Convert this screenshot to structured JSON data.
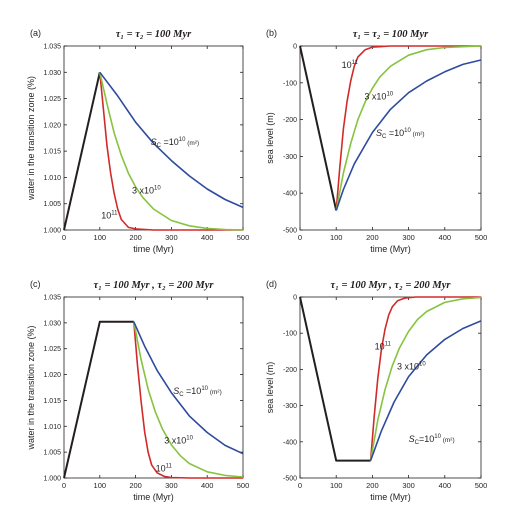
{
  "colors": {
    "black": "#231f20",
    "red": "#d22a2a",
    "green": "#86c440",
    "blue": "#2e4b9e"
  },
  "chart_data": [
    {
      "type": "line",
      "panel_label": "(a)",
      "title": "τ₁ = τ₂ = 100 Myr",
      "xlabel": "time (Myr)",
      "ylabel": "water in the transition zone (%)",
      "xlim": [
        0,
        500
      ],
      "ylim": [
        1.0,
        1.035
      ],
      "xticks": [
        "0",
        "100",
        "200",
        "300",
        "400",
        "500"
      ],
      "yticks": [
        "1.000",
        "1.005",
        "1.010",
        "1.015",
        "1.020",
        "1.025",
        "1.030",
        "1.035"
      ],
      "series": [
        {
          "color": "#231f20",
          "x": [
            0,
            100
          ],
          "y": [
            1.0,
            1.03
          ]
        },
        {
          "color": "#d22a2a",
          "x": [
            100,
            110,
            120,
            130,
            140,
            150,
            160,
            180,
            200,
            250,
            300,
            400,
            500
          ],
          "y": [
            1.03,
            1.023,
            1.016,
            1.011,
            1.007,
            1.004,
            1.002,
            1.0005,
            1.0002,
            1.0,
            1.0,
            1.0,
            1.0
          ]
        },
        {
          "color": "#86c440",
          "x": [
            100,
            120,
            140,
            160,
            180,
            200,
            220,
            250,
            300,
            350,
            400,
            450,
            500
          ],
          "y": [
            1.03,
            1.024,
            1.0185,
            1.0142,
            1.0108,
            1.0082,
            1.0062,
            1.004,
            1.0018,
            1.0008,
            1.0003,
            1.0001,
            1.0
          ]
        },
        {
          "color": "#2e4b9e",
          "x": [
            100,
            150,
            200,
            250,
            300,
            350,
            400,
            450,
            500
          ],
          "y": [
            1.03,
            1.0255,
            1.0205,
            1.0165,
            1.0132,
            1.0103,
            1.0078,
            1.0058,
            1.0043
          ]
        }
      ],
      "annotations": [
        {
          "text": "S",
          "sub": "C",
          "rest": " =10",
          "sup": "10",
          "unit": " (m²)",
          "x": 242,
          "y": 1.0162,
          "color": "#231f20"
        },
        {
          "text": "3 x10",
          "sup": "10",
          "x": 190,
          "y": 1.0069,
          "color": "#231f20"
        },
        {
          "text": "10",
          "sup": "11",
          "x": 104,
          "y": 1.0022,
          "color": "#231f20"
        }
      ]
    },
    {
      "type": "line",
      "panel_label": "(b)",
      "title": "τ₁ = τ₂ = 100 Myr",
      "xlabel": "time (Myr)",
      "ylabel": "sea level (m)",
      "xlim": [
        0,
        500
      ],
      "ylim": [
        -500,
        0
      ],
      "xticks": [
        "0",
        "100",
        "200",
        "300",
        "400",
        "500"
      ],
      "yticks": [
        "-500",
        "-400",
        "-300",
        "-200",
        "-100",
        "0"
      ],
      "series": [
        {
          "color": "#231f20",
          "x": [
            0,
            100
          ],
          "y": [
            0,
            -447
          ]
        },
        {
          "color": "#d22a2a",
          "x": [
            100,
            110,
            120,
            130,
            140,
            150,
            160,
            180,
            200,
            250,
            500
          ],
          "y": [
            -447,
            -330,
            -225,
            -150,
            -95,
            -55,
            -30,
            -10,
            -3,
            0,
            0
          ]
        },
        {
          "color": "#86c440",
          "x": [
            100,
            120,
            140,
            160,
            180,
            200,
            220,
            250,
            300,
            350,
            400,
            500
          ],
          "y": [
            -447,
            -345,
            -265,
            -200,
            -152,
            -115,
            -85,
            -55,
            -25,
            -10,
            -4,
            0
          ]
        },
        {
          "color": "#2e4b9e",
          "x": [
            100,
            120,
            150,
            200,
            250,
            300,
            350,
            400,
            450,
            500
          ],
          "y": [
            -447,
            -390,
            -320,
            -235,
            -172,
            -127,
            -95,
            -70,
            -50,
            -38
          ]
        }
      ],
      "annotations": [
        {
          "text": "10",
          "sup": "11",
          "x": 115,
          "y": -60,
          "color": "#231f20"
        },
        {
          "text": "3 x10",
          "sup": "10",
          "x": 178,
          "y": -145,
          "color": "#231f20"
        },
        {
          "text": "S",
          "sub": "C",
          "rest": " =10",
          "sup": "10",
          "unit": " (m²)",
          "x": 210,
          "y": -245,
          "color": "#231f20"
        }
      ]
    },
    {
      "type": "line",
      "panel_label": "(c)",
      "title": "τ₁ = 100 Myr , τ₂ = 200 Myr",
      "xlabel": "time (Myr)",
      "ylabel": "water in the transition zone (%)",
      "xlim": [
        0,
        500
      ],
      "ylim": [
        1.0,
        1.035
      ],
      "xticks": [
        "0",
        "100",
        "200",
        "300",
        "400",
        "500"
      ],
      "yticks": [
        "1.000",
        "1.005",
        "1.010",
        "1.015",
        "1.020",
        "1.025",
        "1.030",
        "1.035"
      ],
      "series": [
        {
          "color": "#231f20",
          "x": [
            0,
            100,
            195
          ],
          "y": [
            1.0,
            1.0302,
            1.0302
          ]
        },
        {
          "color": "#d22a2a",
          "x": [
            195,
            205,
            215,
            225,
            235,
            245,
            260,
            280,
            300,
            350,
            500
          ],
          "y": [
            1.0302,
            1.022,
            1.015,
            1.009,
            1.005,
            1.0025,
            1.001,
            1.0003,
            1.0001,
            1.0,
            1.0
          ]
        },
        {
          "color": "#86c440",
          "x": [
            195,
            215,
            235,
            255,
            275,
            300,
            325,
            350,
            400,
            450,
            500
          ],
          "y": [
            1.0302,
            1.023,
            1.0172,
            1.0128,
            1.0095,
            1.0064,
            1.0043,
            1.0028,
            1.0012,
            1.0005,
            1.0002
          ]
        },
        {
          "color": "#2e4b9e",
          "x": [
            195,
            225,
            260,
            300,
            350,
            400,
            450,
            500
          ],
          "y": [
            1.0302,
            1.0255,
            1.0208,
            1.0165,
            1.012,
            1.0088,
            1.0063,
            1.0047
          ]
        }
      ],
      "annotations": [
        {
          "text": "S",
          "sub": "C",
          "rest": " =10",
          "sup": "10",
          "unit": " (m²)",
          "x": 305,
          "y": 1.0162,
          "color": "#231f20"
        },
        {
          "text": "3 x10",
          "sup": "10",
          "x": 280,
          "y": 1.0067,
          "color": "#231f20"
        },
        {
          "text": "10",
          "sup": "11",
          "x": 256,
          "y": 1.0013,
          "color": "#231f20"
        }
      ]
    },
    {
      "type": "line",
      "panel_label": "(d)",
      "title": "τ₁ = 100 Myr , τ₂ = 200 Myr",
      "xlabel": "time (Myr)",
      "ylabel": "sea level (m)",
      "xlim": [
        0,
        500
      ],
      "ylim": [
        -500,
        0
      ],
      "xticks": [
        "0",
        "100",
        "200",
        "300",
        "400",
        "500"
      ],
      "yticks": [
        "-500",
        "-400",
        "-300",
        "-200",
        "-100",
        "0"
      ],
      "series": [
        {
          "color": "#231f20",
          "x": [
            0,
            100,
            195
          ],
          "y": [
            0,
            -452,
            -452
          ]
        },
        {
          "color": "#d22a2a",
          "x": [
            195,
            205,
            215,
            225,
            235,
            245,
            255,
            270,
            290,
            320,
            500
          ],
          "y": [
            -452,
            -330,
            -225,
            -145,
            -88,
            -50,
            -27,
            -10,
            -3,
            0,
            0
          ]
        },
        {
          "color": "#86c440",
          "x": [
            195,
            215,
            235,
            255,
            275,
            300,
            325,
            350,
            400,
            450,
            500
          ],
          "y": [
            -452,
            -340,
            -255,
            -190,
            -140,
            -95,
            -62,
            -40,
            -15,
            -5,
            -1
          ]
        },
        {
          "color": "#2e4b9e",
          "x": [
            195,
            225,
            260,
            300,
            350,
            400,
            450,
            500
          ],
          "y": [
            -452,
            -370,
            -290,
            -220,
            -160,
            -117,
            -87,
            -66
          ]
        }
      ],
      "annotations": [
        {
          "text": "10",
          "sup": "11",
          "x": 206,
          "y": -145,
          "color": "#231f20"
        },
        {
          "text": "3 x10",
          "sup": "10",
          "x": 268,
          "y": -200,
          "color": "#231f20"
        },
        {
          "text": "S",
          "sub": "C",
          "rest": "=10",
          "sup": "10",
          "unit": " (m²)",
          "x": 300,
          "y": -400,
          "color": "#231f20"
        }
      ]
    }
  ]
}
